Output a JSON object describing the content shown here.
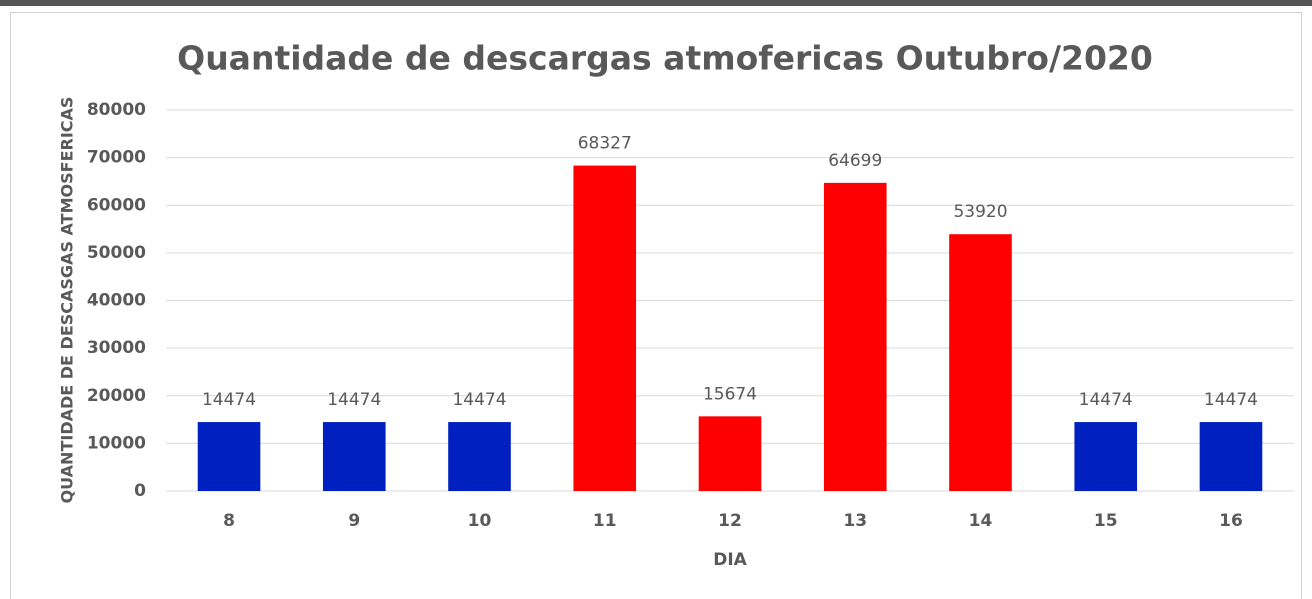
{
  "chart_data": {
    "type": "bar",
    "title": "Quantidade de descargas atmofericas Outubro/2020",
    "x_label": "DIA",
    "y_label": "QUANTIDADE DE DESCASGAS ATMOSFERICAS",
    "categories": [
      "8",
      "9",
      "10",
      "11",
      "12",
      "13",
      "14",
      "15",
      "16"
    ],
    "values": [
      14474,
      14474,
      14474,
      68327,
      15674,
      64699,
      53920,
      14474,
      14474
    ],
    "colors": [
      "#0020c0",
      "#0020c0",
      "#0020c0",
      "#ff0000",
      "#ff0000",
      "#ff0000",
      "#ff0000",
      "#0020c0",
      "#0020c0"
    ],
    "ylim": [
      0,
      80000
    ],
    "yticks": [
      0,
      10000,
      20000,
      30000,
      40000,
      50000,
      60000,
      70000,
      80000
    ],
    "grid": true
  }
}
